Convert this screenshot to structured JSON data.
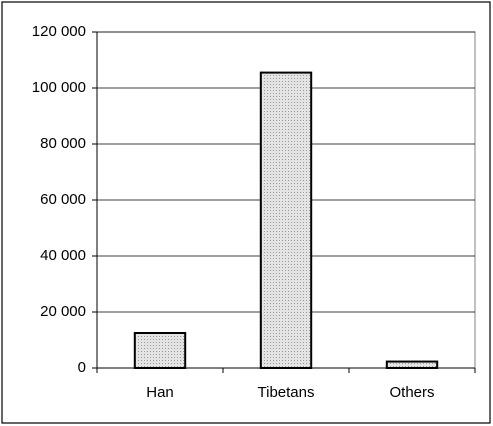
{
  "chart_data": {
    "type": "bar",
    "categories": [
      "Han",
      "Tibetans",
      "Others"
    ],
    "values": [
      12500,
      105500,
      2300
    ],
    "color": "#d6d6d6",
    "ylim": [
      0,
      120000
    ],
    "yticks": [
      0,
      {
        "value": 20000,
        "label": "20 000"
      },
      {
        "value": 40000,
        "label": "40 000"
      },
      {
        "value": 60000,
        "label": "60 000"
      },
      {
        "value": 80000,
        "label": "80 000"
      },
      {
        "value": 100000,
        "label": "100 000"
      },
      {
        "value": 120000,
        "label": "120 000"
      }
    ],
    "grid": true
  }
}
